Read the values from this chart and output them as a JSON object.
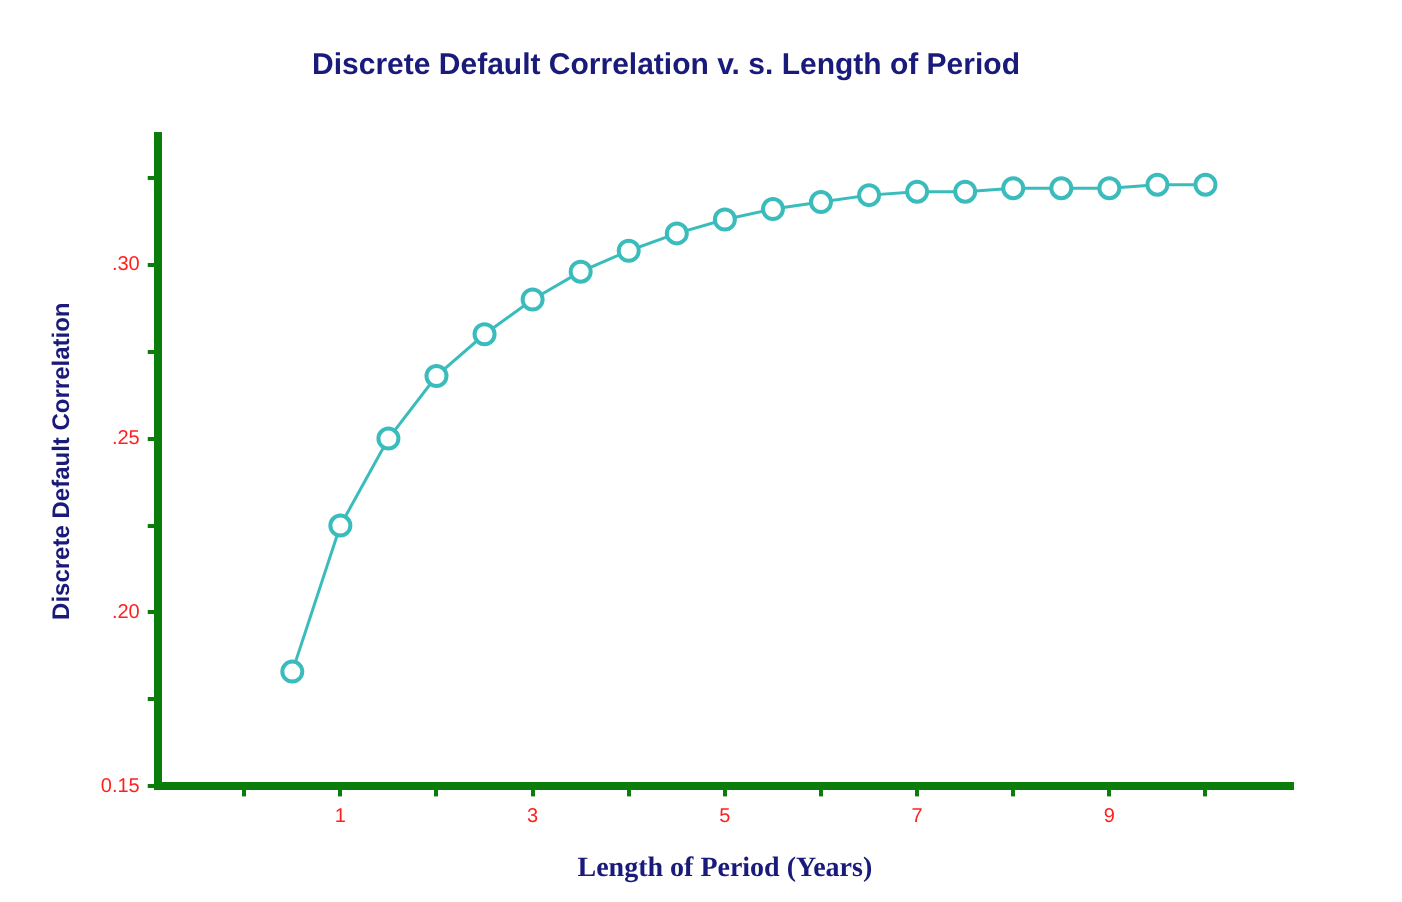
{
  "chart_data": {
    "type": "line",
    "title": "Discrete Default Correlation v. s. Length of Period",
    "xlabel": "Length of Period (Years)",
    "ylabel": "Discrete Default Correlation",
    "x": [
      0.5,
      1,
      1.5,
      2,
      2.5,
      3,
      3.5,
      4,
      4.5,
      5,
      5.5,
      6,
      6.5,
      7,
      7.5,
      8,
      8.5,
      9,
      9.5,
      10
    ],
    "series": [
      {
        "color": "#3abcbc",
        "values": [
          0.183,
          0.225,
          0.25,
          0.268,
          0.28,
          0.29,
          0.298,
          0.304,
          0.309,
          0.313,
          0.316,
          0.318,
          0.32,
          0.321,
          0.321,
          0.322,
          0.322,
          0.322,
          0.323,
          0.323
        ]
      }
    ],
    "xlim": [
      -0.9,
      10.9
    ],
    "xticks": [
      {
        "value": 0,
        "label": null
      },
      1,
      {
        "value": 2,
        "label": null
      },
      3,
      {
        "value": 4,
        "label": null
      },
      5,
      {
        "value": 6,
        "label": null
      },
      7,
      {
        "value": 8,
        "label": null
      },
      9,
      {
        "value": 10,
        "label": null
      }
    ],
    "ylim": [
      0.15,
      0.337
    ],
    "yticks": [
      0.15,
      {
        "value": 0.175,
        "label": null
      },
      {
        "value": 0.2,
        "label": ".20"
      },
      {
        "value": 0.225,
        "label": null
      },
      {
        "value": 0.25,
        "label": ".25"
      },
      {
        "value": 0.275,
        "label": null
      },
      {
        "value": 0.3,
        "label": ".30"
      },
      {
        "value": 0.325,
        "label": null
      }
    ],
    "grid": false,
    "legend": false,
    "marker": "circle",
    "line_style": "solid"
  }
}
